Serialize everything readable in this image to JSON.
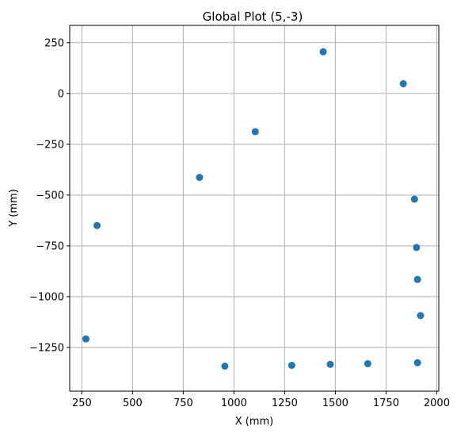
{
  "chart_data": {
    "type": "scatter",
    "title": "Global Plot (5,-3)",
    "xlabel": "X (mm)",
    "ylabel": "Y (mm)",
    "xlim": [
      190,
      2010
    ],
    "ylim": [
      -1465,
      335
    ],
    "xticks": [
      250,
      500,
      750,
      1000,
      1250,
      1500,
      1750,
      2000
    ],
    "yticks": [
      250,
      0,
      -250,
      -500,
      -750,
      -1000,
      -1250
    ],
    "xtick_labels": [
      "250",
      "500",
      "750",
      "1000",
      "1250",
      "1500",
      "1750",
      "2000"
    ],
    "ytick_labels": [
      "250",
      "0",
      "−250",
      "−500",
      "−750",
      "−1000",
      "−1250"
    ],
    "grid": true,
    "marker_color": "#1f77b4",
    "points": [
      {
        "x": 1440,
        "y": 205
      },
      {
        "x": 1835,
        "y": 48
      },
      {
        "x": 1105,
        "y": -188
      },
      {
        "x": 830,
        "y": -413
      },
      {
        "x": 325,
        "y": -650
      },
      {
        "x": 1890,
        "y": -520
      },
      {
        "x": 1900,
        "y": -758
      },
      {
        "x": 1905,
        "y": -915
      },
      {
        "x": 1920,
        "y": -1093
      },
      {
        "x": 270,
        "y": -1208
      },
      {
        "x": 955,
        "y": -1342
      },
      {
        "x": 1285,
        "y": -1338
      },
      {
        "x": 1475,
        "y": -1333
      },
      {
        "x": 1660,
        "y": -1330
      },
      {
        "x": 1905,
        "y": -1325
      }
    ]
  }
}
